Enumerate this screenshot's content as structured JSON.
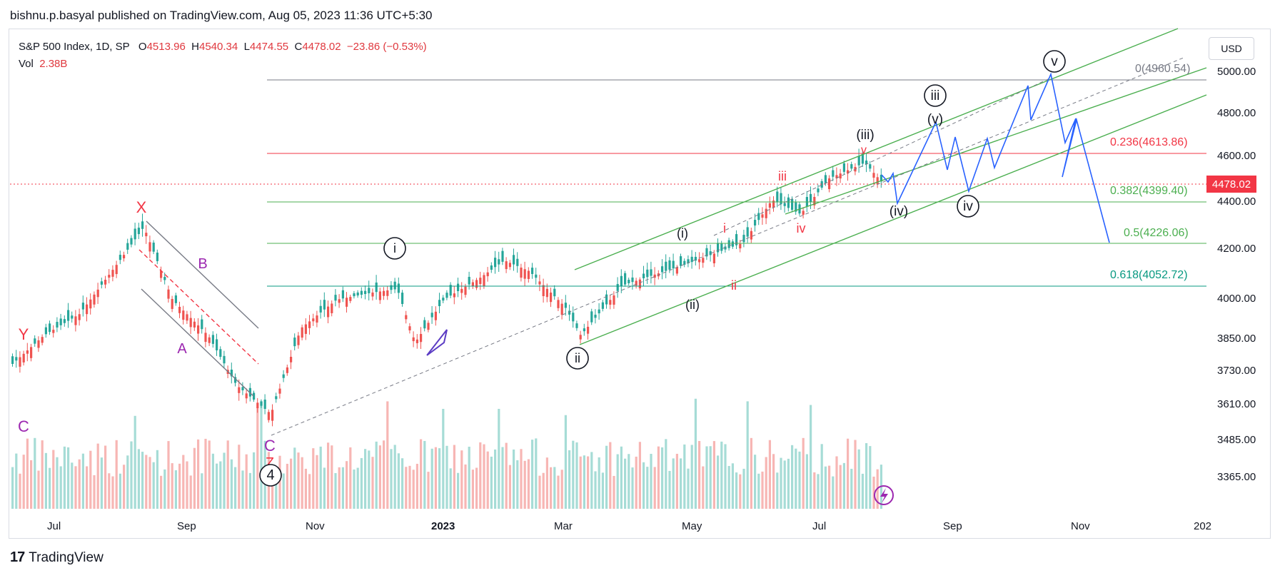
{
  "header": {
    "published_by": "bishnu.p.basyal published on TradingView.com, Aug 05, 2023 11:36 UTC+5:30"
  },
  "legend": {
    "symbol": "S&P 500 Index, 1D, SP",
    "open_label": "O",
    "open": "4513.96",
    "high_label": "H",
    "high": "4540.34",
    "low_label": "L",
    "low": "4474.55",
    "close_label": "C",
    "close": "4478.02",
    "change": "−23.86 (−0.53%)",
    "vol_label": "Vol",
    "vol": "2.38B"
  },
  "currency": "USD",
  "footer": {
    "brand": "TradingView",
    "logo": "17"
  },
  "chart_data": {
    "type": "candlestick",
    "price_ticks": [
      "5000.00",
      "4800.00",
      "4600.00",
      "4400.00",
      "4200.00",
      "4000.00",
      "3850.00",
      "3730.00",
      "3610.00",
      "3485.00",
      "3365.00"
    ],
    "last_price": "4478.02",
    "time_ticks": [
      {
        "label": "Jul",
        "bold": false
      },
      {
        "label": "Sep",
        "bold": false
      },
      {
        "label": "Nov",
        "bold": false
      },
      {
        "label": "2023",
        "bold": true
      },
      {
        "label": "Mar",
        "bold": false
      },
      {
        "label": "May",
        "bold": false
      },
      {
        "label": "Jul",
        "bold": false
      },
      {
        "label": "Sep",
        "bold": false
      },
      {
        "label": "Nov",
        "bold": false
      },
      {
        "label": "202",
        "bold": false
      }
    ],
    "fib_levels": [
      {
        "label": "0(4960.54)",
        "color": "#787b86"
      },
      {
        "label": "0.236(4613.86)",
        "color": "#f23645"
      },
      {
        "label": "0.382(4399.40)",
        "color": "#4caf50"
      },
      {
        "label": "0.5(4226.06)",
        "color": "#4caf50"
      },
      {
        "label": "0.618(4052.72)",
        "color": "#089981"
      }
    ],
    "wave_labels": [
      {
        "text": "X",
        "color": "#f23645"
      },
      {
        "text": "Y",
        "color": "#f23645"
      },
      {
        "text": "C",
        "color": "#9c27b0"
      },
      {
        "text": "A",
        "color": "#9c27b0"
      },
      {
        "text": "B",
        "color": "#9c27b0"
      },
      {
        "text": "C",
        "color": "#9c27b0"
      },
      {
        "text": "Z",
        "color": "#f23645"
      },
      {
        "text": "4",
        "color": "#131722"
      },
      {
        "text": "i",
        "color": "#131722"
      },
      {
        "text": "ii",
        "color": "#131722"
      },
      {
        "text": "(i)",
        "color": "#131722"
      },
      {
        "text": "(ii)",
        "color": "#131722"
      },
      {
        "text": "i",
        "color": "#f23645"
      },
      {
        "text": "ii",
        "color": "#f23645"
      },
      {
        "text": "iii",
        "color": "#f23645"
      },
      {
        "text": "iv",
        "color": "#f23645"
      },
      {
        "text": "(iii)",
        "color": "#131722"
      },
      {
        "text": "v",
        "color": "#f23645"
      },
      {
        "text": "(iv)",
        "color": "#131722"
      },
      {
        "text": "(v)",
        "color": "#131722"
      },
      {
        "text": "iii",
        "color": "#131722"
      },
      {
        "text": "iv",
        "color": "#131722"
      },
      {
        "text": "v",
        "color": "#131722"
      }
    ],
    "colors": {
      "up": "#26a69a",
      "down": "#ef5350",
      "projection": "#2962ff",
      "channel": "#4caf50"
    },
    "grid": false
  }
}
